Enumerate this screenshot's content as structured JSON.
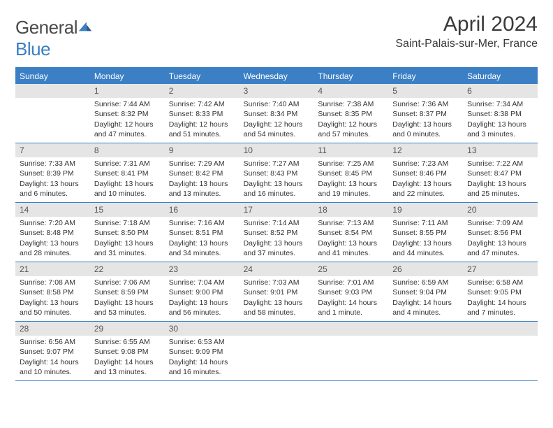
{
  "logo": {
    "word1": "General",
    "word2": "Blue"
  },
  "header": {
    "title": "April 2024",
    "location": "Saint-Palais-sur-Mer, France"
  },
  "colors": {
    "accent": "#3b7fc4",
    "header_bg": "#3b7fc4",
    "daynum_bg": "#e5e5e5",
    "text": "#333333"
  },
  "day_names": [
    "Sunday",
    "Monday",
    "Tuesday",
    "Wednesday",
    "Thursday",
    "Friday",
    "Saturday"
  ],
  "calendar": {
    "first_weekday_index": 1,
    "days_in_month": 30,
    "days": [
      {
        "n": 1,
        "sunrise": "7:44 AM",
        "sunset": "8:32 PM",
        "daylight": "12 hours and 47 minutes."
      },
      {
        "n": 2,
        "sunrise": "7:42 AM",
        "sunset": "8:33 PM",
        "daylight": "12 hours and 51 minutes."
      },
      {
        "n": 3,
        "sunrise": "7:40 AM",
        "sunset": "8:34 PM",
        "daylight": "12 hours and 54 minutes."
      },
      {
        "n": 4,
        "sunrise": "7:38 AM",
        "sunset": "8:35 PM",
        "daylight": "12 hours and 57 minutes."
      },
      {
        "n": 5,
        "sunrise": "7:36 AM",
        "sunset": "8:37 PM",
        "daylight": "13 hours and 0 minutes."
      },
      {
        "n": 6,
        "sunrise": "7:34 AM",
        "sunset": "8:38 PM",
        "daylight": "13 hours and 3 minutes."
      },
      {
        "n": 7,
        "sunrise": "7:33 AM",
        "sunset": "8:39 PM",
        "daylight": "13 hours and 6 minutes."
      },
      {
        "n": 8,
        "sunrise": "7:31 AM",
        "sunset": "8:41 PM",
        "daylight": "13 hours and 10 minutes."
      },
      {
        "n": 9,
        "sunrise": "7:29 AM",
        "sunset": "8:42 PM",
        "daylight": "13 hours and 13 minutes."
      },
      {
        "n": 10,
        "sunrise": "7:27 AM",
        "sunset": "8:43 PM",
        "daylight": "13 hours and 16 minutes."
      },
      {
        "n": 11,
        "sunrise": "7:25 AM",
        "sunset": "8:45 PM",
        "daylight": "13 hours and 19 minutes."
      },
      {
        "n": 12,
        "sunrise": "7:23 AM",
        "sunset": "8:46 PM",
        "daylight": "13 hours and 22 minutes."
      },
      {
        "n": 13,
        "sunrise": "7:22 AM",
        "sunset": "8:47 PM",
        "daylight": "13 hours and 25 minutes."
      },
      {
        "n": 14,
        "sunrise": "7:20 AM",
        "sunset": "8:48 PM",
        "daylight": "13 hours and 28 minutes."
      },
      {
        "n": 15,
        "sunrise": "7:18 AM",
        "sunset": "8:50 PM",
        "daylight": "13 hours and 31 minutes."
      },
      {
        "n": 16,
        "sunrise": "7:16 AM",
        "sunset": "8:51 PM",
        "daylight": "13 hours and 34 minutes."
      },
      {
        "n": 17,
        "sunrise": "7:14 AM",
        "sunset": "8:52 PM",
        "daylight": "13 hours and 37 minutes."
      },
      {
        "n": 18,
        "sunrise": "7:13 AM",
        "sunset": "8:54 PM",
        "daylight": "13 hours and 41 minutes."
      },
      {
        "n": 19,
        "sunrise": "7:11 AM",
        "sunset": "8:55 PM",
        "daylight": "13 hours and 44 minutes."
      },
      {
        "n": 20,
        "sunrise": "7:09 AM",
        "sunset": "8:56 PM",
        "daylight": "13 hours and 47 minutes."
      },
      {
        "n": 21,
        "sunrise": "7:08 AM",
        "sunset": "8:58 PM",
        "daylight": "13 hours and 50 minutes."
      },
      {
        "n": 22,
        "sunrise": "7:06 AM",
        "sunset": "8:59 PM",
        "daylight": "13 hours and 53 minutes."
      },
      {
        "n": 23,
        "sunrise": "7:04 AM",
        "sunset": "9:00 PM",
        "daylight": "13 hours and 56 minutes."
      },
      {
        "n": 24,
        "sunrise": "7:03 AM",
        "sunset": "9:01 PM",
        "daylight": "13 hours and 58 minutes."
      },
      {
        "n": 25,
        "sunrise": "7:01 AM",
        "sunset": "9:03 PM",
        "daylight": "14 hours and 1 minute."
      },
      {
        "n": 26,
        "sunrise": "6:59 AM",
        "sunset": "9:04 PM",
        "daylight": "14 hours and 4 minutes."
      },
      {
        "n": 27,
        "sunrise": "6:58 AM",
        "sunset": "9:05 PM",
        "daylight": "14 hours and 7 minutes."
      },
      {
        "n": 28,
        "sunrise": "6:56 AM",
        "sunset": "9:07 PM",
        "daylight": "14 hours and 10 minutes."
      },
      {
        "n": 29,
        "sunrise": "6:55 AM",
        "sunset": "9:08 PM",
        "daylight": "14 hours and 13 minutes."
      },
      {
        "n": 30,
        "sunrise": "6:53 AM",
        "sunset": "9:09 PM",
        "daylight": "14 hours and 16 minutes."
      }
    ]
  },
  "labels": {
    "sunrise": "Sunrise:",
    "sunset": "Sunset:",
    "daylight": "Daylight:"
  }
}
